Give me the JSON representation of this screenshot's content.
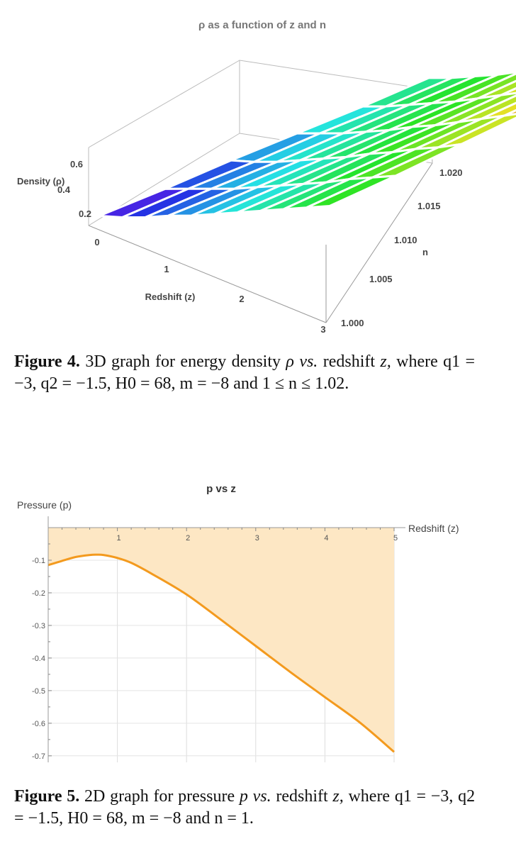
{
  "figure4": {
    "chart_data": {
      "type": "surface3d",
      "title": "ρ as a function of z and n",
      "xlabel": "Redshift (z)",
      "ylabel": "n",
      "zlabel": "Density (ρ)",
      "x_ticks": [
        "1",
        "2",
        "3"
      ],
      "y_ticks": [
        "1.000",
        "1.005",
        "1.010",
        "1.015",
        "1.020"
      ],
      "z_ticks": [
        "0",
        "0.2",
        "0.4",
        "0.6"
      ],
      "xlim": [
        0,
        3
      ],
      "ylim": [
        1.0,
        1.02
      ],
      "zlim": [
        0,
        0.7
      ],
      "grid_z": [
        0,
        0.3,
        0.6,
        0.9,
        1.2,
        1.5,
        1.8,
        2.1,
        2.4,
        2.7,
        3.0
      ],
      "grid_n": [
        1.0,
        1.004,
        1.008,
        1.012,
        1.016,
        1.02
      ],
      "surface_rho_approx": [
        [
          0.07,
          0.07,
          0.08,
          0.08,
          0.08,
          0.09
        ],
        [
          0.07,
          0.08,
          0.08,
          0.09,
          0.09,
          0.1
        ],
        [
          0.08,
          0.09,
          0.09,
          0.1,
          0.11,
          0.12
        ],
        [
          0.1,
          0.1,
          0.11,
          0.12,
          0.13,
          0.14
        ],
        [
          0.11,
          0.12,
          0.13,
          0.14,
          0.15,
          0.17
        ],
        [
          0.13,
          0.14,
          0.15,
          0.17,
          0.18,
          0.2
        ],
        [
          0.15,
          0.16,
          0.18,
          0.19,
          0.21,
          0.23
        ],
        [
          0.17,
          0.18,
          0.2,
          0.22,
          0.24,
          0.26
        ],
        [
          0.19,
          0.21,
          0.23,
          0.25,
          0.27,
          0.3
        ],
        [
          0.21,
          0.23,
          0.25,
          0.28,
          0.3,
          0.33
        ],
        [
          0.23,
          0.25,
          0.28,
          0.31,
          0.34,
          0.37
        ]
      ]
    },
    "caption": {
      "label": "Figure 4.",
      "text_main": "3D graph for energy density",
      "rho": "ρ",
      "vs": "vs.",
      "text_redshift": "redshift",
      "z": "z,",
      "where": "where",
      "params": "q1 = −3, q2 = −1.5, H0 = 68, m = −8 and 1 ≤ n ≤ 1.02."
    }
  },
  "figure5": {
    "chart_data": {
      "type": "area",
      "title": "p vs z",
      "xlabel": "Redshift (z)",
      "ylabel": "Pressure (p)",
      "xlim": [
        0,
        5
      ],
      "ylim": [
        -0.72,
        0
      ],
      "x_ticks": [
        "1",
        "2",
        "3",
        "4",
        "5"
      ],
      "y_ticks": [
        "-0.1",
        "-0.2",
        "-0.3",
        "-0.4",
        "-0.5",
        "-0.6",
        "-0.7"
      ],
      "x": [
        0,
        0.2,
        0.4,
        0.6,
        0.7,
        0.8,
        1.0,
        1.2,
        1.5,
        2.0,
        2.5,
        3.0,
        3.5,
        4.0,
        4.5,
        5.0
      ],
      "y": [
        -0.115,
        -0.102,
        -0.09,
        -0.084,
        -0.083,
        -0.084,
        -0.093,
        -0.108,
        -0.142,
        -0.205,
        -0.283,
        -0.363,
        -0.443,
        -0.52,
        -0.597,
        -0.688
      ],
      "series_color": "#f39a1e",
      "fill_color": "#fde7c4"
    },
    "caption": {
      "label": "Figure 5.",
      "text_main": "2D graph for pressure",
      "p": "p",
      "vs": "vs.",
      "text_redshift": "redshift",
      "z": "z,",
      "where": "where",
      "params": "q1 = −3, q2 = −1.5, H0 = 68, m = −8 and n = 1."
    }
  }
}
